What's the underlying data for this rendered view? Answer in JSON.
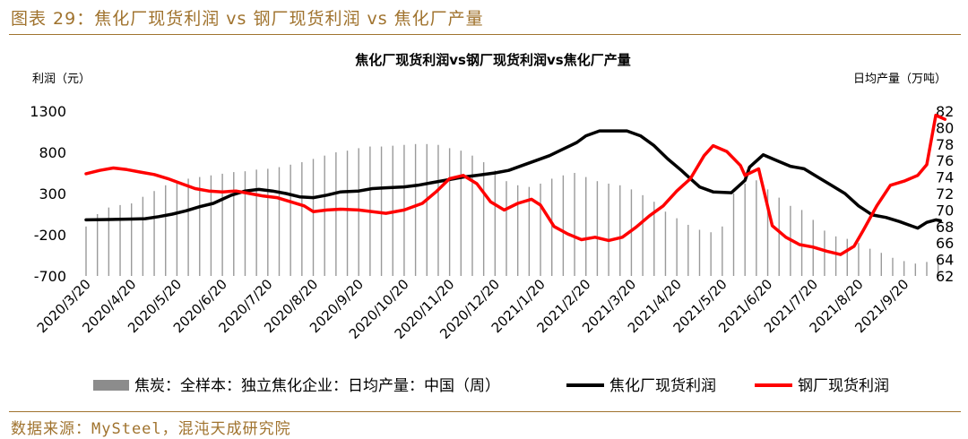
{
  "figure": {
    "title": "图表 29：焦化厂现货利润 vs 钢厂现货利润 vs 焦化厂产量",
    "source": "数据来源：MySteel，混沌天成研究院"
  },
  "chart_data": {
    "type": "line",
    "title": "焦化厂现货利润vs钢厂现货利润vs焦化厂产量",
    "ylabel_left": "利润（元）",
    "ylabel_right": "日均产量（万吨）",
    "y_left": {
      "min": -700,
      "max": 1300,
      "ticks": [
        1300,
        800,
        300,
        -200,
        -700
      ]
    },
    "y_right": {
      "min": 62,
      "max": 82,
      "ticks": [
        82,
        80,
        78,
        76,
        74,
        72,
        70,
        68,
        66,
        64,
        62
      ]
    },
    "x_labels": [
      "2020/3/20",
      "2020/4/20",
      "2020/5/20",
      "2020/6/20",
      "2020/7/20",
      "2020/8/20",
      "2020/9/20",
      "2020/10/20",
      "2020/11/20",
      "2020/12/20",
      "2021/1/20",
      "2021/2/20",
      "2021/3/20",
      "2021/4/20",
      "2021/5/20",
      "2021/6/20",
      "2021/7/20",
      "2021/8/20",
      "2021/9/20"
    ],
    "legend": [
      {
        "name": "焦炭：全样本：独立焦化企业：日均产量：中国（周）",
        "color": "#8c8c8c",
        "kind": "bar"
      },
      {
        "name": "焦化厂现货利润",
        "color": "#000000",
        "kind": "line"
      },
      {
        "name": "钢厂现货利润",
        "color": "#ff0000",
        "kind": "line"
      }
    ],
    "series": [
      {
        "name": "焦炭：全样本：独立焦化企业：日均产量：中国（周）",
        "axis": "right",
        "type": "bar",
        "points": [
          [
            0,
            68.0
          ],
          [
            0.25,
            69.5
          ],
          [
            0.5,
            70.3
          ],
          [
            0.75,
            70.6
          ],
          [
            1,
            70.8
          ],
          [
            1.25,
            71.6
          ],
          [
            1.5,
            72.3
          ],
          [
            1.75,
            73.0
          ],
          [
            2,
            73.4
          ],
          [
            2.25,
            73.8
          ],
          [
            2.5,
            74.0
          ],
          [
            2.75,
            74.2
          ],
          [
            3,
            74.4
          ],
          [
            3.25,
            74.6
          ],
          [
            3.5,
            74.7
          ],
          [
            3.75,
            74.9
          ],
          [
            4,
            75.0
          ],
          [
            4.25,
            75.2
          ],
          [
            4.5,
            75.5
          ],
          [
            4.75,
            75.8
          ],
          [
            5,
            76.2
          ],
          [
            5.25,
            76.6
          ],
          [
            5.5,
            77.0
          ],
          [
            5.75,
            77.2
          ],
          [
            6,
            77.5
          ],
          [
            6.25,
            77.7
          ],
          [
            6.5,
            77.7
          ],
          [
            6.75,
            77.8
          ],
          [
            7,
            77.9
          ],
          [
            7.25,
            78.0
          ],
          [
            7.5,
            78.0
          ],
          [
            7.75,
            77.9
          ],
          [
            8,
            77.5
          ],
          [
            8.25,
            77.2
          ],
          [
            8.5,
            76.6
          ],
          [
            8.75,
            75.8
          ],
          [
            9,
            74.8
          ],
          [
            9.25,
            73.5
          ],
          [
            9.5,
            73.0
          ],
          [
            9.75,
            72.8
          ],
          [
            10,
            73.2
          ],
          [
            10.25,
            73.8
          ],
          [
            10.5,
            74.2
          ],
          [
            10.75,
            74.5
          ],
          [
            11,
            74.0
          ],
          [
            11.25,
            73.5
          ],
          [
            11.5,
            73.2
          ],
          [
            11.75,
            73.0
          ],
          [
            12,
            72.5
          ],
          [
            12.25,
            71.8
          ],
          [
            12.5,
            71.0
          ],
          [
            12.75,
            69.8
          ],
          [
            13,
            69.0
          ],
          [
            13.25,
            68.2
          ],
          [
            13.5,
            67.6
          ],
          [
            13.75,
            67.3
          ],
          [
            14,
            68.0
          ],
          [
            14.25,
            72.0
          ],
          [
            14.5,
            73.2
          ],
          [
            14.75,
            73.6
          ],
          [
            15,
            72.5
          ],
          [
            15.25,
            71.5
          ],
          [
            15.5,
            70.5
          ],
          [
            15.75,
            70.0
          ],
          [
            16,
            68.8
          ],
          [
            16.25,
            67.5
          ],
          [
            16.5,
            66.8
          ],
          [
            16.75,
            66.5
          ],
          [
            17,
            66.0
          ],
          [
            17.25,
            65.3
          ],
          [
            17.5,
            64.8
          ],
          [
            17.75,
            64.2
          ],
          [
            18,
            63.8
          ],
          [
            18.25,
            63.5
          ],
          [
            18.5,
            63.7
          ],
          [
            18.75,
            63.8
          ]
        ]
      },
      {
        "name": "焦化厂现货利润",
        "axis": "left",
        "type": "line",
        "points": [
          [
            0,
            -20
          ],
          [
            0.5,
            -15
          ],
          [
            1,
            -10
          ],
          [
            1.3,
            -5
          ],
          [
            1.6,
            20
          ],
          [
            1.9,
            50
          ],
          [
            2.2,
            90
          ],
          [
            2.5,
            140
          ],
          [
            2.8,
            180
          ],
          [
            3,
            230
          ],
          [
            3.2,
            280
          ],
          [
            3.5,
            330
          ],
          [
            3.8,
            350
          ],
          [
            4.1,
            330
          ],
          [
            4.4,
            300
          ],
          [
            4.7,
            260
          ],
          [
            5,
            250
          ],
          [
            5.3,
            280
          ],
          [
            5.6,
            320
          ],
          [
            6,
            330
          ],
          [
            6.3,
            360
          ],
          [
            6.6,
            370
          ],
          [
            7,
            380
          ],
          [
            7.3,
            400
          ],
          [
            7.6,
            430
          ],
          [
            8,
            470
          ],
          [
            8.3,
            500
          ],
          [
            8.6,
            520
          ],
          [
            9,
            550
          ],
          [
            9.3,
            580
          ],
          [
            9.6,
            640
          ],
          [
            9.9,
            700
          ],
          [
            10.2,
            760
          ],
          [
            10.5,
            840
          ],
          [
            10.8,
            920
          ],
          [
            11,
            1000
          ],
          [
            11.3,
            1060
          ],
          [
            11.6,
            1060
          ],
          [
            11.9,
            1060
          ],
          [
            12.2,
            1000
          ],
          [
            12.5,
            880
          ],
          [
            12.8,
            720
          ],
          [
            13.1,
            580
          ],
          [
            13.3,
            480
          ],
          [
            13.5,
            380
          ],
          [
            13.8,
            320
          ],
          [
            14.2,
            310
          ],
          [
            14.5,
            460
          ],
          [
            14.6,
            620
          ],
          [
            14.9,
            770
          ],
          [
            15.2,
            700
          ],
          [
            15.5,
            630
          ],
          [
            15.8,
            600
          ],
          [
            16.1,
            500
          ],
          [
            16.4,
            400
          ],
          [
            16.7,
            300
          ],
          [
            17,
            150
          ],
          [
            17.3,
            40
          ],
          [
            17.6,
            10
          ],
          [
            17.9,
            -40
          ],
          [
            18.1,
            -80
          ],
          [
            18.3,
            -120
          ],
          [
            18.5,
            -50
          ],
          [
            18.7,
            -20
          ],
          [
            18.8,
            -30
          ]
        ]
      },
      {
        "name": "钢厂现货利润",
        "axis": "left",
        "type": "line",
        "points": [
          [
            0,
            540
          ],
          [
            0.3,
            580
          ],
          [
            0.6,
            610
          ],
          [
            0.9,
            590
          ],
          [
            1.2,
            560
          ],
          [
            1.5,
            530
          ],
          [
            1.8,
            480
          ],
          [
            2.1,
            420
          ],
          [
            2.4,
            360
          ],
          [
            2.7,
            330
          ],
          [
            3,
            320
          ],
          [
            3.3,
            330
          ],
          [
            3.6,
            300
          ],
          [
            3.9,
            270
          ],
          [
            4.2,
            250
          ],
          [
            4.5,
            200
          ],
          [
            4.8,
            150
          ],
          [
            5,
            80
          ],
          [
            5.3,
            100
          ],
          [
            5.6,
            110
          ],
          [
            6,
            100
          ],
          [
            6.3,
            80
          ],
          [
            6.6,
            60
          ],
          [
            7,
            100
          ],
          [
            7.4,
            180
          ],
          [
            7.7,
            320
          ],
          [
            8,
            480
          ],
          [
            8.3,
            520
          ],
          [
            8.6,
            420
          ],
          [
            8.9,
            200
          ],
          [
            9.2,
            100
          ],
          [
            9.5,
            180
          ],
          [
            9.8,
            230
          ],
          [
            10,
            160
          ],
          [
            10.3,
            -100
          ],
          [
            10.6,
            -190
          ],
          [
            10.9,
            -260
          ],
          [
            11.2,
            -230
          ],
          [
            11.5,
            -270
          ],
          [
            11.8,
            -230
          ],
          [
            12.1,
            -110
          ],
          [
            12.4,
            30
          ],
          [
            12.7,
            150
          ],
          [
            13,
            330
          ],
          [
            13.3,
            480
          ],
          [
            13.6,
            760
          ],
          [
            13.8,
            880
          ],
          [
            14.1,
            810
          ],
          [
            14.4,
            640
          ],
          [
            14.5,
            520
          ],
          [
            14.8,
            600
          ],
          [
            15.1,
            -90
          ],
          [
            15.4,
            -230
          ],
          [
            15.7,
            -320
          ],
          [
            16,
            -350
          ],
          [
            16.3,
            -400
          ],
          [
            16.6,
            -440
          ],
          [
            16.9,
            -340
          ],
          [
            17.1,
            -150
          ],
          [
            17.4,
            150
          ],
          [
            17.7,
            400
          ],
          [
            18,
            450
          ],
          [
            18.3,
            520
          ],
          [
            18.5,
            650
          ],
          [
            18.7,
            1250
          ],
          [
            18.9,
            1200
          ]
        ]
      }
    ]
  }
}
